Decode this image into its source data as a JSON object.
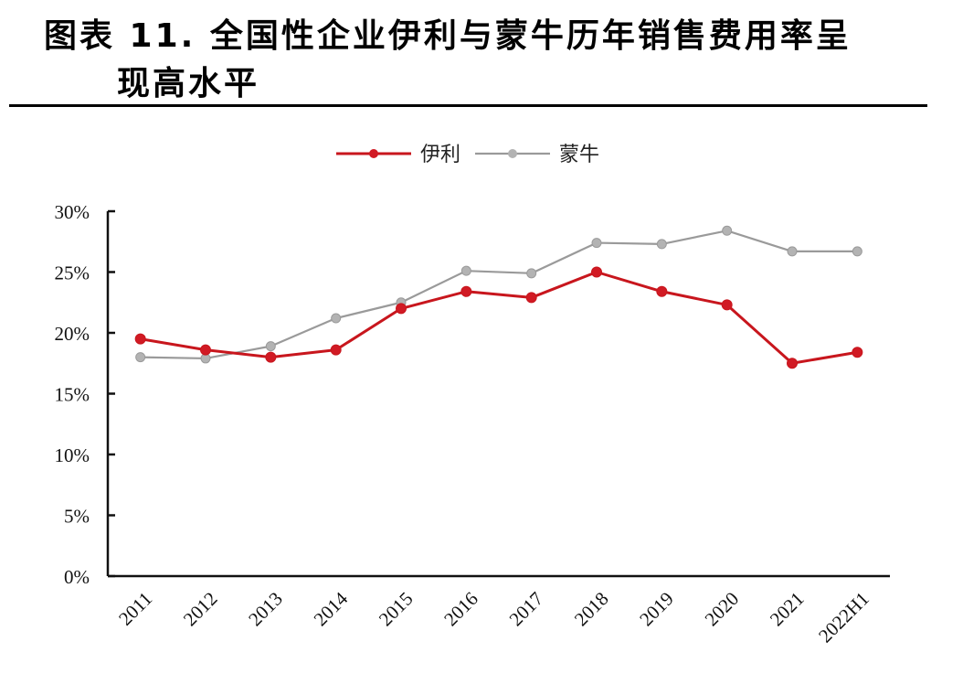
{
  "header": {
    "title_line1": "图表 11. 全国性企业伊利与蒙牛历年销售费用率呈",
    "title_line2": "现高水平"
  },
  "legend": {
    "items": [
      {
        "label": "伊利",
        "color": "#c8161d"
      },
      {
        "label": "蒙牛",
        "color": "#9a9a9a"
      }
    ]
  },
  "chart_data": {
    "type": "line",
    "title": "图表 11. 全国性企业伊利与蒙牛历年销售费用率呈现高水平",
    "xlabel": "",
    "ylabel": "",
    "categories": [
      "2011",
      "2012",
      "2013",
      "2014",
      "2015",
      "2016",
      "2017",
      "2018",
      "2019",
      "2020",
      "2021",
      "2022H1"
    ],
    "series": [
      {
        "name": "伊利",
        "color": "#c8161d",
        "values": [
          19.5,
          18.6,
          18.0,
          18.6,
          22.0,
          23.4,
          22.9,
          25.0,
          23.4,
          22.3,
          17.5,
          18.4
        ]
      },
      {
        "name": "蒙牛",
        "color": "#9a9a9a",
        "values": [
          18.0,
          17.9,
          18.9,
          21.2,
          22.5,
          25.1,
          24.9,
          27.4,
          27.3,
          28.4,
          26.7,
          26.7
        ]
      }
    ],
    "ylim": [
      0,
      30
    ],
    "yticks": [
      "0%",
      "5%",
      "10%",
      "15%",
      "20%",
      "25%",
      "30%"
    ],
    "grid": false,
    "legend_position": "top"
  }
}
